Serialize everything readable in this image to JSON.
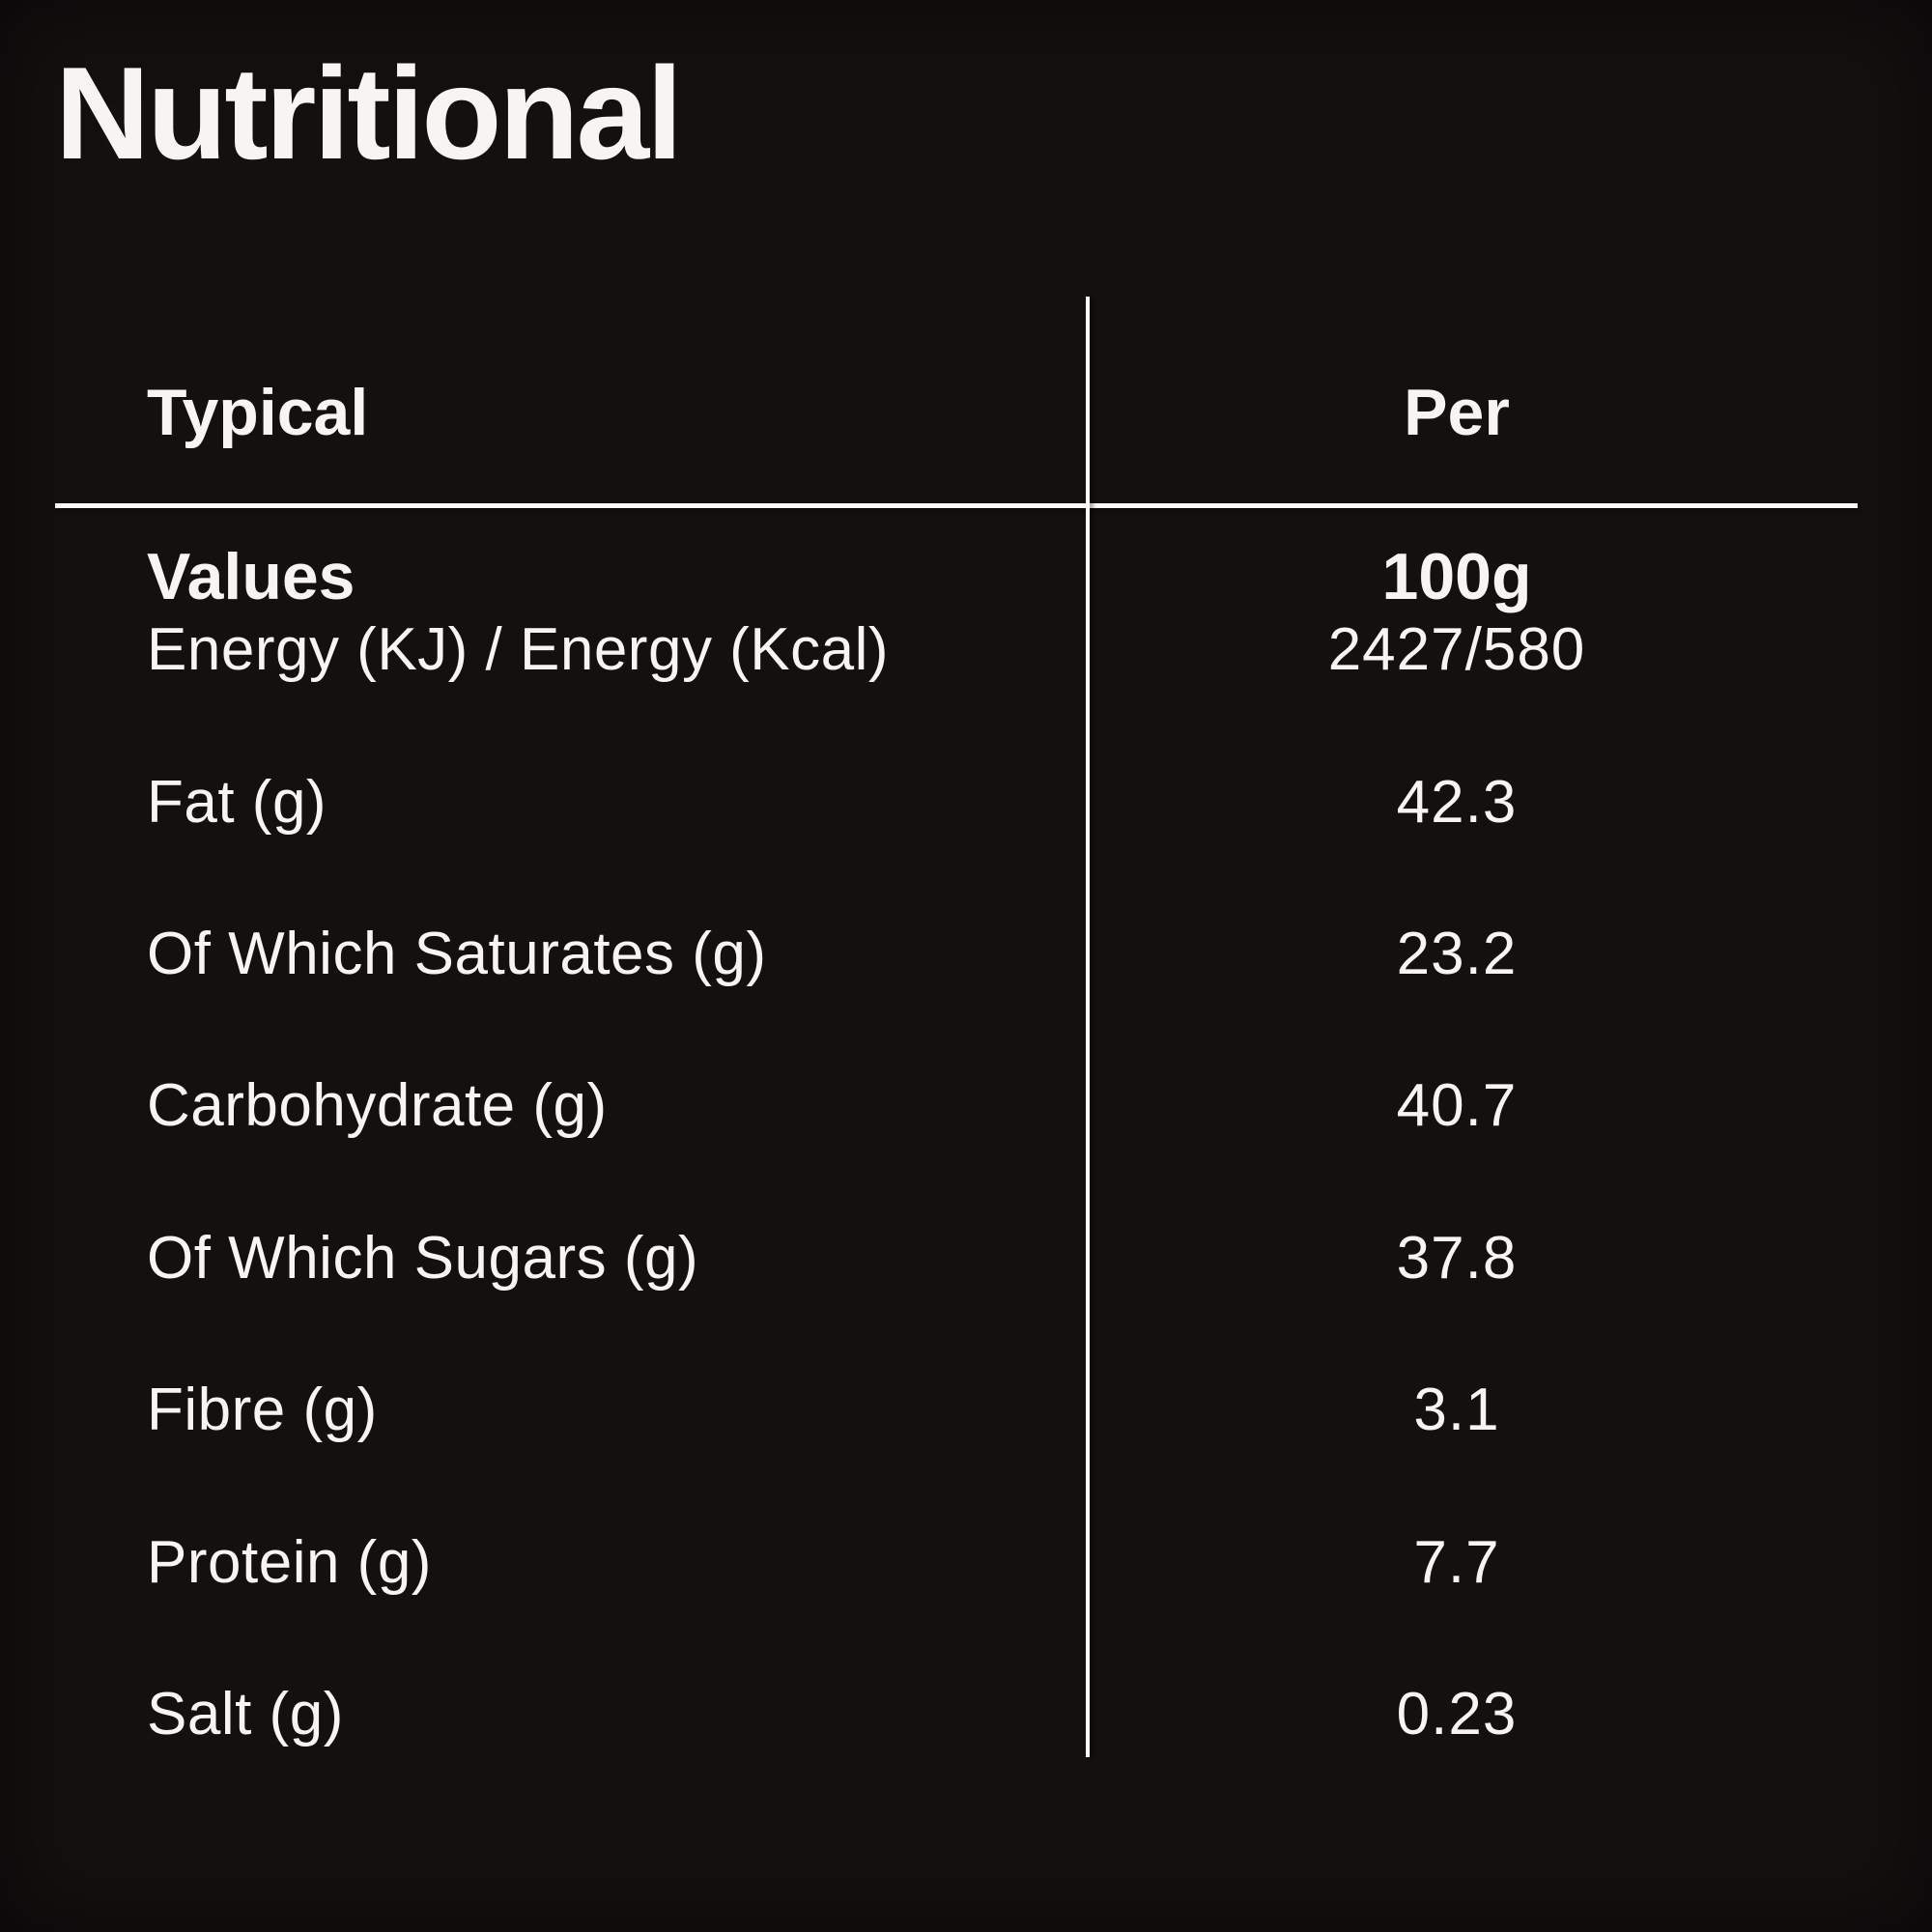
{
  "page": {
    "title": "Nutritional"
  },
  "colors": {
    "background": "#131110",
    "text": "#f7f5f2",
    "rule": "#fbfaf9"
  },
  "table": {
    "header": {
      "left": {
        "line1": "Typical",
        "line2": "Values"
      },
      "right": {
        "line1": "Per",
        "line2": "100g"
      }
    },
    "rows": [
      {
        "label": "Energy (KJ) / Energy (Kcal)",
        "value": "2427/580"
      },
      {
        "label": "Fat (g)",
        "value": "42.3"
      },
      {
        "label": "Of Which Saturates (g)",
        "value": "23.2"
      },
      {
        "label": "Carbohydrate (g)",
        "value": "40.7"
      },
      {
        "label": "Of Which Sugars (g)",
        "value": "37.8"
      },
      {
        "label": "Fibre (g)",
        "value": "3.1"
      },
      {
        "label": "Protein (g)",
        "value": "7.7"
      },
      {
        "label": "Salt (g)",
        "value": "0.23"
      }
    ]
  }
}
